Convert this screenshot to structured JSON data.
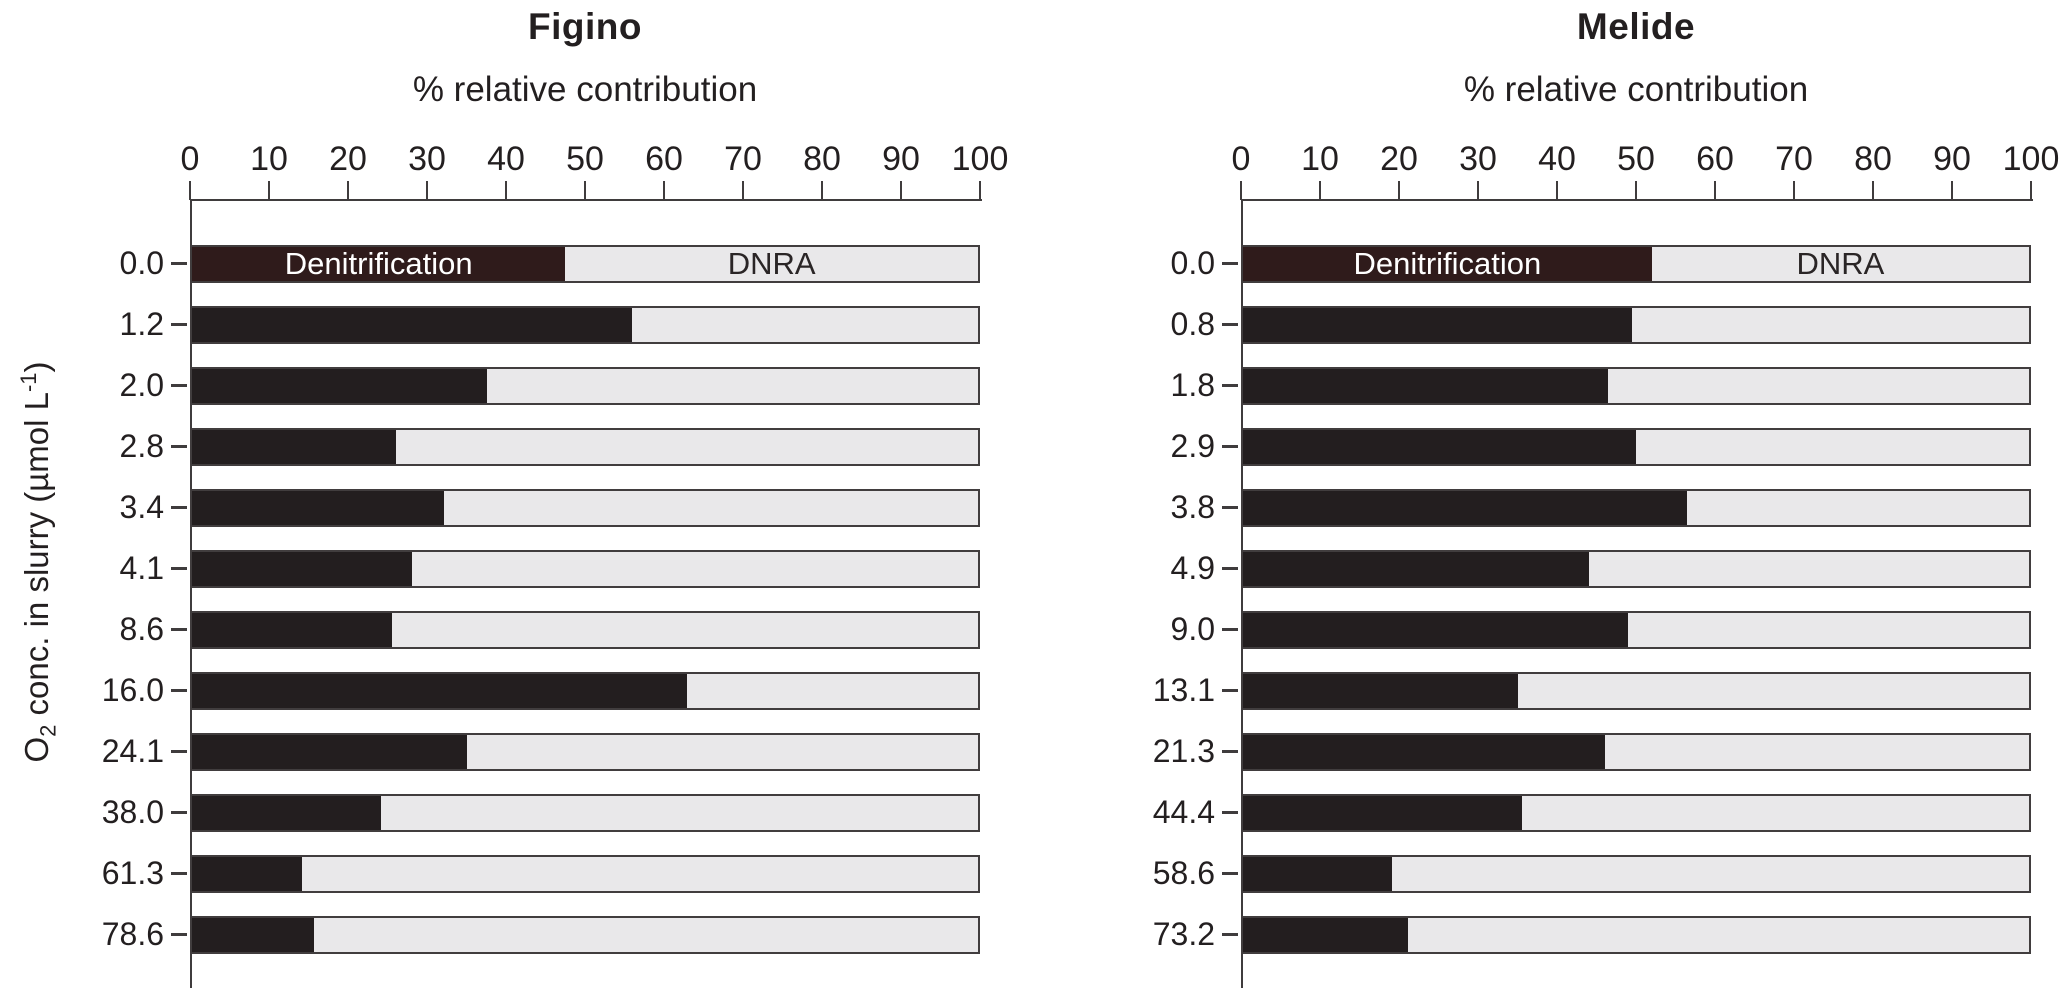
{
  "figure": {
    "background": "#ffffff"
  },
  "ylabel_parts": {
    "pre": "O",
    "sub": "2",
    "mid": " conc. in slurry (µmol L",
    "sup": "-1",
    "post": ")"
  },
  "colors": {
    "denitrification_first_row": "#2f1b1b",
    "denitrification": "#231e1f",
    "dnra": "#e9e8ea",
    "bar_border": "#413d3e",
    "axis": "#3f3c3d",
    "text": "#231f20",
    "denit_label_text": "#ffffff"
  },
  "chart_data": [
    {
      "type": "bar",
      "orientation": "horizontal",
      "stacked": true,
      "title": "Figino",
      "xlabel": "% relative contribution",
      "ylabel": "O2 conc. in slurry (µmol L-1)",
      "xlim": [
        0,
        100
      ],
      "xtick_labels": [
        "0",
        "10",
        "20",
        "30",
        "40",
        "50",
        "60",
        "70",
        "80",
        "90",
        "100"
      ],
      "grid": false,
      "legend_position": "inside-first-bar",
      "categories": [
        "0.0",
        "1.2",
        "2.0",
        "2.8",
        "3.4",
        "4.1",
        "8.6",
        "16.0",
        "24.1",
        "38.0",
        "61.3",
        "78.6"
      ],
      "series": [
        {
          "name": "Denitrification",
          "values": [
            47.5,
            56,
            37.5,
            26,
            32,
            28,
            25.5,
            63,
            35,
            24,
            14,
            15.5
          ]
        },
        {
          "name": "DNRA",
          "values": [
            52.5,
            44,
            62.5,
            74,
            68,
            72,
            74.5,
            37,
            65,
            76,
            86,
            84.5
          ]
        }
      ]
    },
    {
      "type": "bar",
      "orientation": "horizontal",
      "stacked": true,
      "title": "Melide",
      "xlabel": "% relative contribution",
      "xlim": [
        0,
        100
      ],
      "xtick_labels": [
        "0",
        "10",
        "20",
        "30",
        "40",
        "50",
        "60",
        "70",
        "80",
        "90",
        "100"
      ],
      "grid": false,
      "legend_position": "inside-first-bar",
      "categories": [
        "0.0",
        "0.8",
        "1.8",
        "2.9",
        "3.8",
        "4.9",
        "9.0",
        "13.1",
        "21.3",
        "44.4",
        "58.6",
        "73.2"
      ],
      "series": [
        {
          "name": "Denitrification",
          "values": [
            52,
            49.5,
            46.5,
            50,
            56.5,
            44,
            49,
            35,
            46,
            35.5,
            19,
            21
          ]
        },
        {
          "name": "DNRA",
          "values": [
            48,
            50.5,
            53.5,
            50,
            43.5,
            56,
            51,
            65,
            54,
            64.5,
            81,
            79
          ]
        }
      ]
    }
  ]
}
